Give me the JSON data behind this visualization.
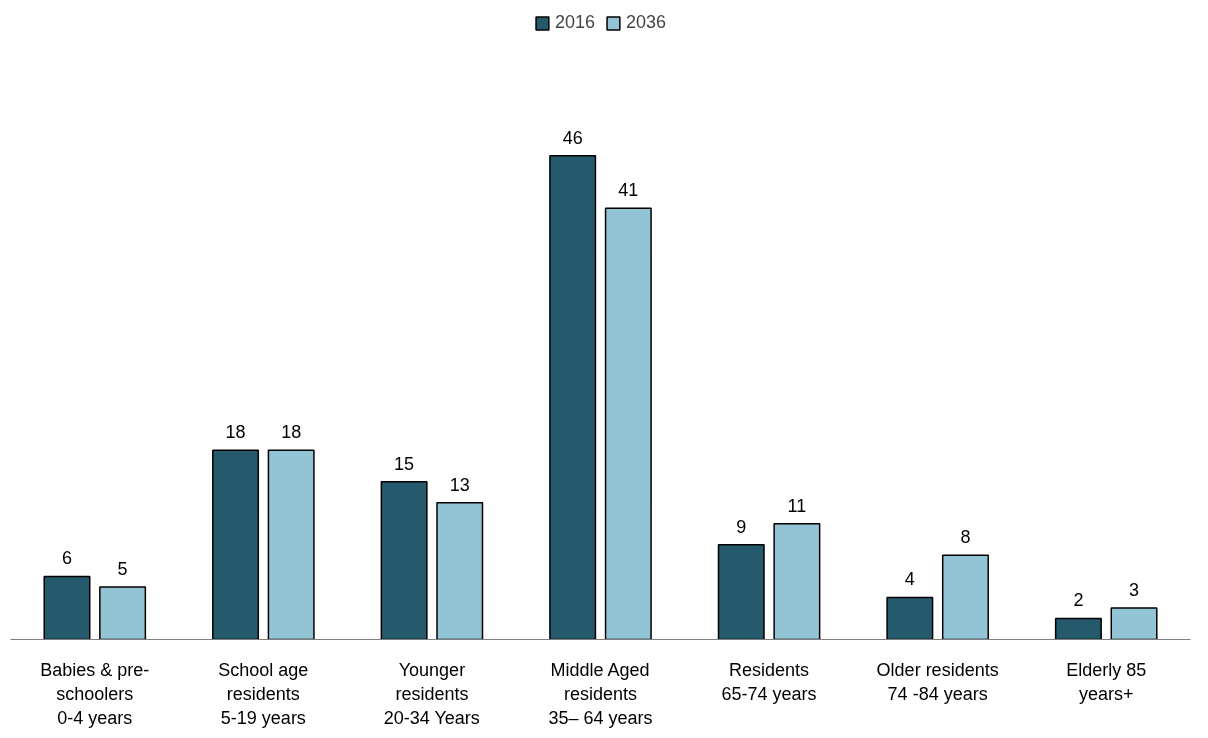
{
  "chart_data": {
    "type": "bar",
    "categories": [
      "Babies & pre-\nschoolers\n0-4 years",
      "School age\nresidents\n5-19 years",
      "Younger\nresidents\n20-34 Years",
      "Middle Aged\nresidents\n35– 64 years",
      "Residents\n65-74 years",
      "Older residents\n74 -84 years",
      "Elderly 85\nyears+"
    ],
    "series": [
      {
        "name": "2016",
        "color": "#245a6b",
        "values": [
          6,
          18,
          15,
          46,
          9,
          4,
          2
        ]
      },
      {
        "name": "2036",
        "color": "#93c4d6",
        "values": [
          5,
          18,
          13,
          41,
          11,
          8,
          3
        ]
      }
    ],
    "data_labels": true,
    "legend": "top",
    "grid": false
  }
}
